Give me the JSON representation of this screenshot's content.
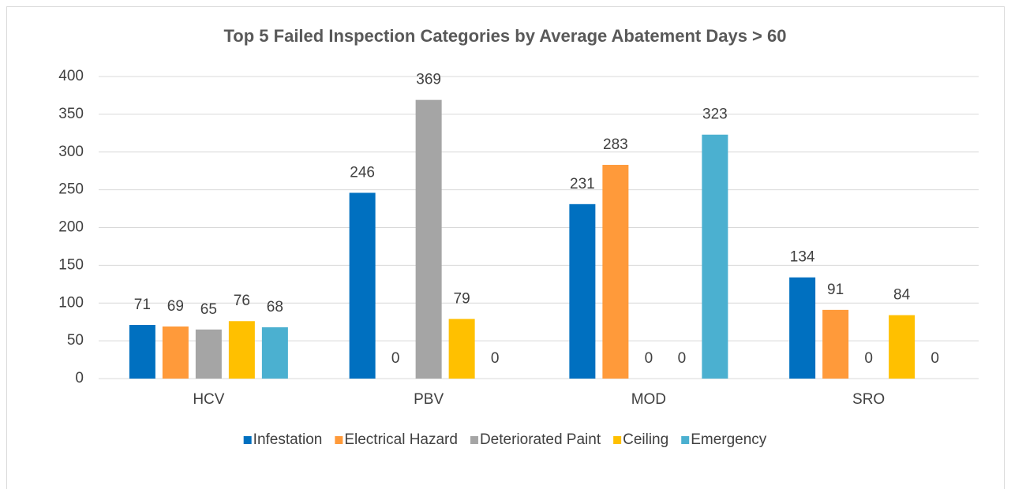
{
  "chart_data": {
    "type": "bar",
    "title": "Top 5 Failed Inspection Categories by Average Abatement Days > 60",
    "categories": [
      "HCV",
      "PBV",
      "MOD",
      "SRO"
    ],
    "series": [
      {
        "name": "Infestation",
        "color": "#0070c0",
        "values": [
          71,
          246,
          231,
          134
        ]
      },
      {
        "name": "Electrical Hazard",
        "color": "#ff9a3a",
        "values": [
          69,
          0,
          283,
          91
        ]
      },
      {
        "name": "Deteriorated Paint",
        "color": "#a5a5a5",
        "values": [
          65,
          369,
          0,
          0
        ]
      },
      {
        "name": "Ceiling",
        "color": "#ffc000",
        "values": [
          76,
          79,
          0,
          84
        ]
      },
      {
        "name": "Emergency",
        "color": "#4bb0d0",
        "values": [
          68,
          0,
          323,
          0
        ]
      }
    ],
    "ylim": [
      0,
      400
    ],
    "yticks": [
      0,
      50,
      100,
      150,
      200,
      250,
      300,
      350,
      400
    ],
    "grid": true,
    "legend": "bottom"
  }
}
